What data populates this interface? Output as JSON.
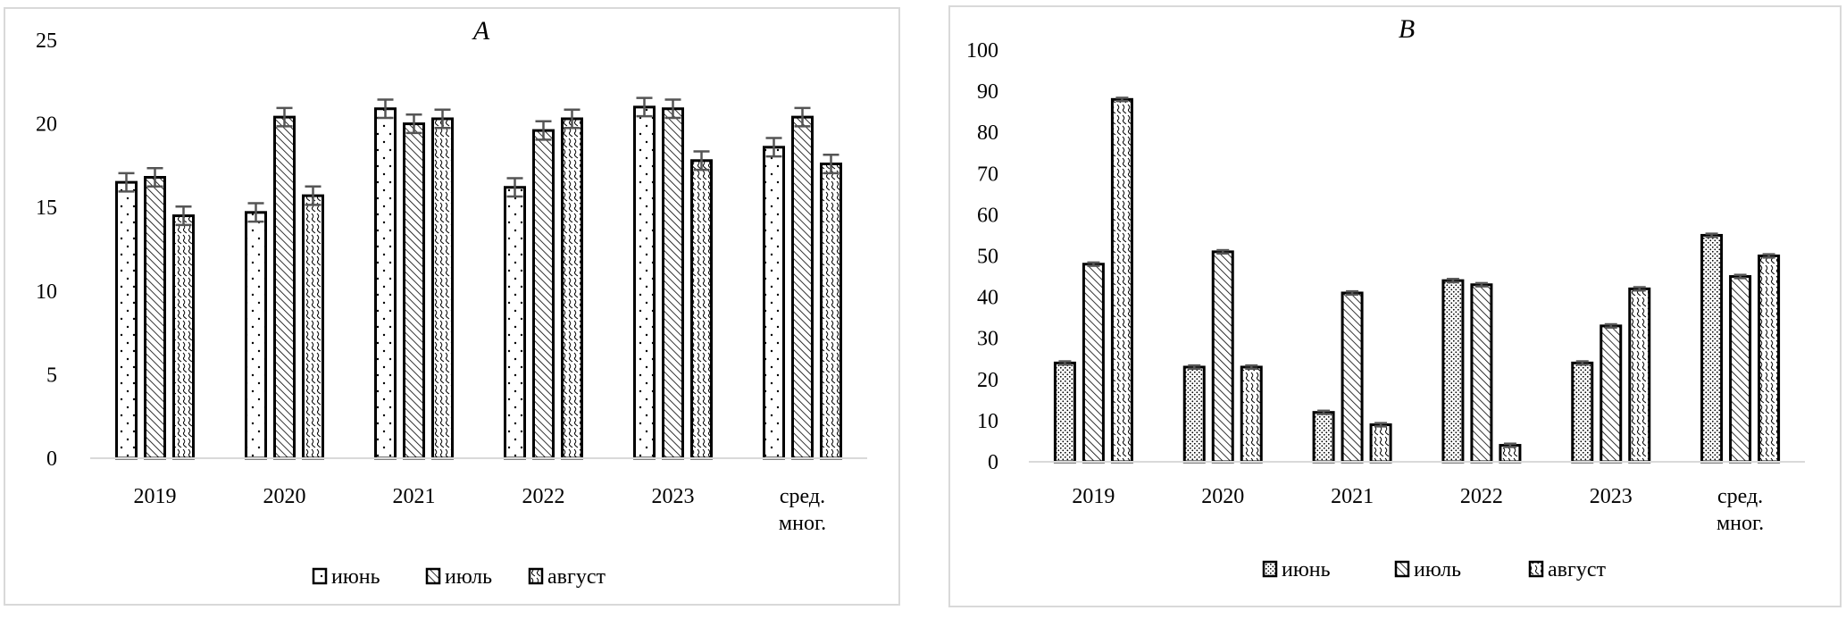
{
  "chart_data": [
    {
      "type": "bar",
      "title": "A",
      "categories": [
        "2019",
        "2020",
        "2021",
        "2022",
        "2023",
        "сред. мног."
      ],
      "series": [
        {
          "name": "июнь",
          "pattern": "dots",
          "values": [
            16.5,
            14.7,
            20.9,
            16.2,
            21.0,
            18.6
          ]
        },
        {
          "name": "июль",
          "pattern": "diagonal",
          "values": [
            16.8,
            20.4,
            20.0,
            19.6,
            20.9,
            20.4
          ]
        },
        {
          "name": "август",
          "pattern": "wave",
          "values": [
            14.5,
            15.7,
            20.3,
            20.3,
            17.8,
            17.6
          ]
        }
      ],
      "error": 0.55,
      "yticks": [
        "0",
        "5",
        "10",
        "15",
        "20",
        "25"
      ],
      "ylim": [
        0,
        25
      ],
      "xlabel": "",
      "ylabel": "",
      "grid": false,
      "legend": "bottom"
    },
    {
      "type": "bar",
      "title": "B",
      "categories": [
        "2019",
        "2020",
        "2021",
        "2022",
        "2023",
        "сред. мног."
      ],
      "series": [
        {
          "name": "июнь",
          "pattern": "dense-dots",
          "values": [
            24,
            23,
            12,
            44,
            24,
            55
          ]
        },
        {
          "name": "июль",
          "pattern": "diagonal",
          "values": [
            48,
            51,
            41,
            43,
            33,
            45
          ]
        },
        {
          "name": "август",
          "pattern": "wave",
          "values": [
            88,
            23,
            9,
            4,
            42,
            50
          ]
        }
      ],
      "error": 0.4,
      "yticks": [
        "0",
        "10",
        "20",
        "30",
        "40",
        "50",
        "60",
        "70",
        "80",
        "90",
        "100"
      ],
      "ylim": [
        0,
        100
      ],
      "xlabel": "",
      "ylabel": "",
      "grid": false,
      "legend": "bottom"
    }
  ],
  "colors": {
    "bar_fill": "#ffffff",
    "bar_stroke": "#000000",
    "pattern": "#000000",
    "frame": "#d9d9d9"
  }
}
